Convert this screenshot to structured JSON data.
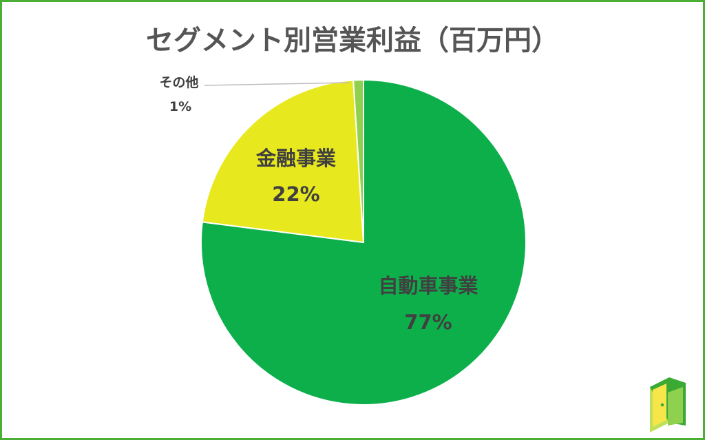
{
  "title": "セグメント別営業利益（百万円）",
  "chart_data": {
    "type": "pie",
    "title": "セグメント別営業利益（百万円）",
    "unit": "百万円",
    "start": "12 o'clock",
    "direction": "clockwise",
    "slices": [
      {
        "label": "自動車事業",
        "percent_label": "77%",
        "value": 77,
        "color": "#0daf4b"
      },
      {
        "label": "金融事業",
        "percent_label": "22%",
        "value": 22,
        "color": "#e8e81f"
      },
      {
        "label": "その他",
        "percent_label": "1%",
        "value": 1,
        "color": "#8fd14f"
      }
    ]
  },
  "colors": {
    "frame": "#4caf35",
    "label_text": "#404040",
    "title_text": "#555555",
    "logo_dark": "#3aaa35",
    "logo_light": "#bfe05a"
  },
  "logo": {
    "icon": "door-icon"
  }
}
